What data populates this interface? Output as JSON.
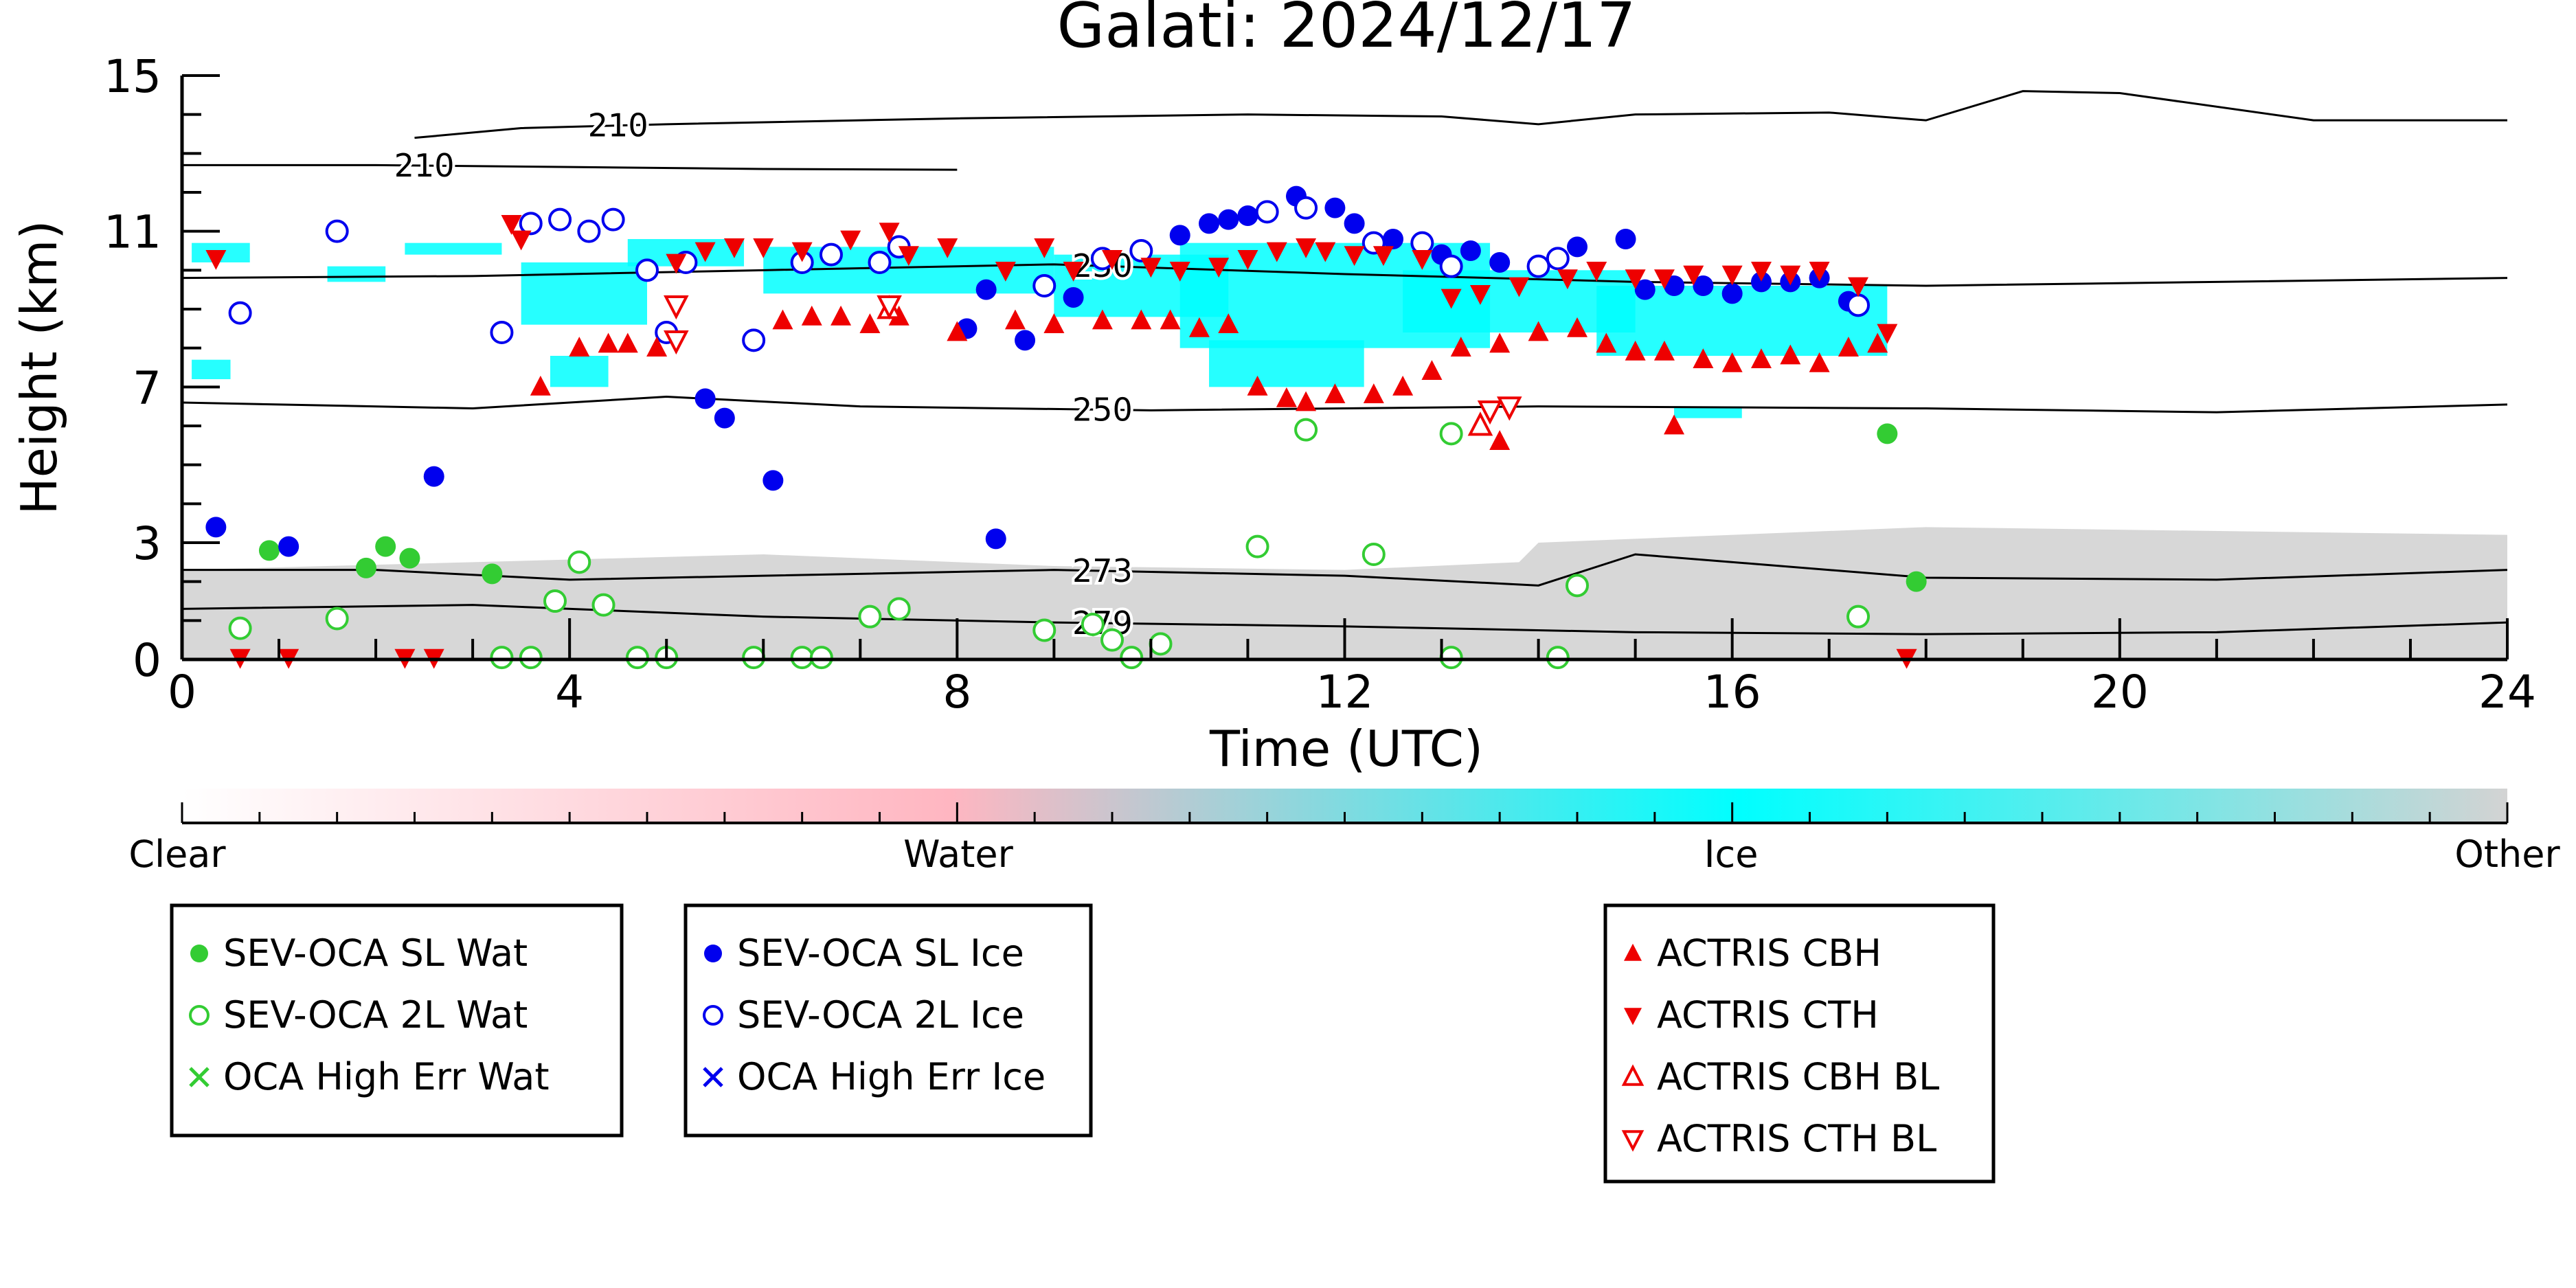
{
  "chart_data": {
    "type": "scatter",
    "title": "Galati: 2024/12/17",
    "xlabel": "Time (UTC)",
    "ylabel": "Height (km)",
    "xlim": [
      0,
      24
    ],
    "ylim": [
      0,
      15
    ],
    "x_ticks": [
      0,
      4,
      8,
      12,
      16,
      20,
      24
    ],
    "y_ticks": [
      0,
      3,
      7,
      11,
      15
    ],
    "colorbar": {
      "labels": [
        "Clear",
        "Water",
        "Ice",
        "Other"
      ],
      "colors": [
        "#ffffff",
        "#ffb6c1",
        "#00ffff",
        "#d3d3d3"
      ]
    },
    "contours": [
      {
        "label": "210",
        "points": [
          [
            0,
            12.7
          ],
          [
            2,
            12.7
          ],
          [
            4,
            12.65
          ],
          [
            6,
            12.6
          ],
          [
            8,
            12.58
          ]
        ]
      },
      {
        "label": "210",
        "points": [
          [
            2.4,
            13.4
          ],
          [
            3.5,
            13.65
          ],
          [
            5,
            13.75
          ],
          [
            8,
            13.9
          ],
          [
            11,
            14
          ],
          [
            13,
            13.95
          ],
          [
            14,
            13.75
          ],
          [
            15,
            14.0
          ],
          [
            17,
            14.05
          ],
          [
            18,
            13.85
          ],
          [
            19,
            14.6
          ],
          [
            20,
            14.55
          ],
          [
            22,
            13.85
          ],
          [
            24,
            13.85
          ]
        ]
      },
      {
        "label": "230",
        "points": [
          [
            0,
            9.8
          ],
          [
            3,
            9.85
          ],
          [
            6,
            10.0
          ],
          [
            9,
            10.15
          ],
          [
            12,
            9.9
          ],
          [
            15,
            9.7
          ],
          [
            18,
            9.6
          ],
          [
            21,
            9.7
          ],
          [
            24,
            9.8
          ]
        ]
      },
      {
        "label": "250",
        "points": [
          [
            0,
            6.6
          ],
          [
            3,
            6.45
          ],
          [
            5,
            6.75
          ],
          [
            7,
            6.5
          ],
          [
            10,
            6.4
          ],
          [
            14,
            6.5
          ],
          [
            18,
            6.45
          ],
          [
            21,
            6.35
          ],
          [
            24,
            6.55
          ]
        ]
      },
      {
        "label": "273",
        "points": [
          [
            0,
            2.3
          ],
          [
            2,
            2.3
          ],
          [
            4,
            2.05
          ],
          [
            6,
            2.15
          ],
          [
            9,
            2.3
          ],
          [
            12,
            2.15
          ],
          [
            14,
            1.9
          ],
          [
            15,
            2.7
          ],
          [
            18,
            2.1
          ],
          [
            21,
            2.05
          ],
          [
            24,
            2.3
          ]
        ]
      },
      {
        "label": "279",
        "points": [
          [
            0,
            1.3
          ],
          [
            3,
            1.4
          ],
          [
            6,
            1.1
          ],
          [
            9,
            0.95
          ],
          [
            12,
            0.85
          ],
          [
            15,
            0.7
          ],
          [
            18,
            0.65
          ],
          [
            21,
            0.7
          ],
          [
            24,
            0.95
          ]
        ]
      }
    ],
    "series": [
      {
        "name": "SEV-OCA SL Wat",
        "marker": "filled-circle",
        "color": "#33cc33",
        "points": [
          [
            0.9,
            2.8
          ],
          [
            1.9,
            2.35
          ],
          [
            2.1,
            2.9
          ],
          [
            2.35,
            2.6
          ],
          [
            3.2,
            2.2
          ],
          [
            17.6,
            5.8
          ],
          [
            17.9,
            2.0
          ]
        ]
      },
      {
        "name": "SEV-OCA 2L Wat",
        "marker": "open-circle",
        "color": "#33cc33",
        "points": [
          [
            0.6,
            0.8
          ],
          [
            1.6,
            1.05
          ],
          [
            3.3,
            0.05
          ],
          [
            3.6,
            0.05
          ],
          [
            3.85,
            1.5
          ],
          [
            4.1,
            2.5
          ],
          [
            4.35,
            1.4
          ],
          [
            4.7,
            0.05
          ],
          [
            5.0,
            0.05
          ],
          [
            5.9,
            0.05
          ],
          [
            6.4,
            0.05
          ],
          [
            6.6,
            0.05
          ],
          [
            7.1,
            1.1
          ],
          [
            7.4,
            1.3
          ],
          [
            8.9,
            0.75
          ],
          [
            9.4,
            0.9
          ],
          [
            9.6,
            0.5
          ],
          [
            9.8,
            0.05
          ],
          [
            10.1,
            0.4
          ],
          [
            11.1,
            2.9
          ],
          [
            11.6,
            5.9
          ],
          [
            12.3,
            2.7
          ],
          [
            13.1,
            0.05
          ],
          [
            13.1,
            5.8
          ],
          [
            14.2,
            0.05
          ],
          [
            14.4,
            1.9
          ],
          [
            17.3,
            1.1
          ]
        ]
      },
      {
        "name": "OCA High Err Wat",
        "marker": "x",
        "color": "#33cc33",
        "points": []
      },
      {
        "name": "SEV-OCA SL Ice",
        "marker": "filled-circle",
        "color": "#0000ee",
        "points": [
          [
            0.35,
            3.4
          ],
          [
            1.1,
            2.9
          ],
          [
            2.6,
            4.7
          ],
          [
            5.4,
            6.7
          ],
          [
            5.6,
            6.2
          ],
          [
            6.1,
            4.6
          ],
          [
            8.4,
            3.1
          ],
          [
            8.1,
            8.5
          ],
          [
            8.3,
            9.5
          ],
          [
            8.7,
            8.2
          ],
          [
            9.2,
            9.3
          ],
          [
            10.3,
            10.9
          ],
          [
            10.6,
            11.2
          ],
          [
            10.8,
            11.3
          ],
          [
            11.0,
            11.4
          ],
          [
            11.5,
            11.9
          ],
          [
            11.9,
            11.6
          ],
          [
            12.1,
            11.2
          ],
          [
            12.5,
            10.8
          ],
          [
            13.0,
            10.4
          ],
          [
            13.3,
            10.5
          ],
          [
            13.6,
            10.2
          ],
          [
            14.4,
            10.6
          ],
          [
            14.9,
            10.8
          ],
          [
            15.1,
            9.5
          ],
          [
            15.4,
            9.6
          ],
          [
            15.7,
            9.6
          ],
          [
            16.0,
            9.4
          ],
          [
            16.3,
            9.7
          ],
          [
            16.6,
            9.7
          ],
          [
            16.9,
            9.8
          ],
          [
            17.2,
            9.2
          ]
        ]
      },
      {
        "name": "SEV-OCA 2L Ice",
        "marker": "open-circle",
        "color": "#0000ee",
        "points": [
          [
            0.6,
            8.9
          ],
          [
            1.6,
            11.0
          ],
          [
            3.3,
            8.4
          ],
          [
            3.6,
            11.2
          ],
          [
            3.9,
            11.3
          ],
          [
            4.2,
            11.0
          ],
          [
            4.45,
            11.3
          ],
          [
            4.8,
            10.0
          ],
          [
            5.0,
            8.4
          ],
          [
            5.2,
            10.2
          ],
          [
            5.9,
            8.2
          ],
          [
            6.4,
            10.2
          ],
          [
            6.7,
            10.4
          ],
          [
            7.2,
            10.2
          ],
          [
            7.4,
            10.6
          ],
          [
            8.9,
            9.6
          ],
          [
            9.5,
            10.3
          ],
          [
            9.9,
            10.5
          ],
          [
            11.2,
            11.5
          ],
          [
            11.6,
            11.6
          ],
          [
            12.3,
            10.7
          ],
          [
            12.8,
            10.7
          ],
          [
            13.1,
            10.1
          ],
          [
            14.0,
            10.1
          ],
          [
            14.2,
            10.3
          ],
          [
            17.3,
            9.1
          ]
        ]
      },
      {
        "name": "OCA High Err Ice",
        "marker": "x",
        "color": "#0000ee",
        "points": []
      },
      {
        "name": "ACTRIS CBH",
        "marker": "filled-triangle-up",
        "color": "#ee0000",
        "points": [
          [
            3.7,
            7.0
          ],
          [
            4.1,
            8.0
          ],
          [
            4.4,
            8.1
          ],
          [
            4.6,
            8.1
          ],
          [
            4.9,
            8.0
          ],
          [
            6.2,
            8.7
          ],
          [
            6.5,
            8.8
          ],
          [
            6.8,
            8.8
          ],
          [
            7.1,
            8.6
          ],
          [
            7.4,
            8.8
          ],
          [
            8.0,
            8.4
          ],
          [
            8.6,
            8.7
          ],
          [
            9.0,
            8.6
          ],
          [
            9.5,
            8.7
          ],
          [
            9.9,
            8.7
          ],
          [
            10.2,
            8.7
          ],
          [
            10.5,
            8.5
          ],
          [
            10.8,
            8.6
          ],
          [
            11.1,
            7.0
          ],
          [
            11.4,
            6.7
          ],
          [
            11.6,
            6.6
          ],
          [
            11.9,
            6.8
          ],
          [
            12.3,
            6.8
          ],
          [
            12.6,
            7.0
          ],
          [
            12.9,
            7.4
          ],
          [
            13.2,
            8.0
          ],
          [
            13.6,
            8.1
          ],
          [
            14.0,
            8.4
          ],
          [
            14.4,
            8.5
          ],
          [
            14.7,
            8.1
          ],
          [
            15.0,
            7.9
          ],
          [
            15.3,
            7.9
          ],
          [
            15.7,
            7.7
          ],
          [
            16.0,
            7.6
          ],
          [
            16.3,
            7.7
          ],
          [
            16.6,
            7.8
          ],
          [
            16.9,
            7.6
          ],
          [
            17.2,
            8.0
          ],
          [
            17.5,
            8.1
          ],
          [
            15.4,
            6.0
          ],
          [
            13.6,
            5.6
          ]
        ]
      },
      {
        "name": "ACTRIS CTH",
        "marker": "filled-triangle-down",
        "color": "#ee0000",
        "points": [
          [
            0.35,
            10.3
          ],
          [
            3.4,
            11.2
          ],
          [
            3.5,
            10.8
          ],
          [
            5.1,
            10.2
          ],
          [
            5.4,
            10.5
          ],
          [
            5.7,
            10.6
          ],
          [
            6.0,
            10.6
          ],
          [
            6.4,
            10.5
          ],
          [
            6.9,
            10.8
          ],
          [
            7.3,
            11.0
          ],
          [
            7.5,
            10.4
          ],
          [
            7.9,
            10.6
          ],
          [
            8.5,
            10.0
          ],
          [
            8.9,
            10.6
          ],
          [
            9.2,
            10.0
          ],
          [
            9.6,
            10.3
          ],
          [
            10.0,
            10.1
          ],
          [
            10.3,
            10.0
          ],
          [
            10.7,
            10.1
          ],
          [
            11.0,
            10.3
          ],
          [
            11.3,
            10.5
          ],
          [
            11.6,
            10.6
          ],
          [
            11.8,
            10.5
          ],
          [
            12.1,
            10.4
          ],
          [
            12.4,
            10.4
          ],
          [
            12.8,
            10.3
          ],
          [
            13.1,
            9.3
          ],
          [
            13.4,
            9.4
          ],
          [
            13.8,
            9.6
          ],
          [
            14.3,
            9.8
          ],
          [
            14.6,
            10.0
          ],
          [
            15.0,
            9.8
          ],
          [
            15.3,
            9.8
          ],
          [
            15.6,
            9.9
          ],
          [
            16.0,
            9.9
          ],
          [
            16.3,
            10.0
          ],
          [
            16.6,
            9.9
          ],
          [
            16.9,
            10.0
          ],
          [
            17.3,
            9.6
          ],
          [
            17.6,
            8.4
          ],
          [
            1.1,
            0.05
          ],
          [
            2.3,
            0.05
          ],
          [
            2.6,
            0.05
          ],
          [
            0.6,
            0.05
          ],
          [
            17.8,
            0.05
          ]
        ]
      },
      {
        "name": "ACTRIS CBH BL",
        "marker": "open-triangle-up",
        "color": "#ee0000",
        "points": [
          [
            7.3,
            9.0
          ],
          [
            13.4,
            6.0
          ]
        ]
      },
      {
        "name": "ACTRIS CTH BL",
        "marker": "open-triangle-down",
        "color": "#ee0000",
        "points": [
          [
            5.1,
            8.2
          ],
          [
            5.1,
            9.1
          ],
          [
            7.3,
            9.1
          ],
          [
            13.5,
            6.4
          ],
          [
            13.7,
            6.5
          ]
        ]
      }
    ],
    "legends": [
      {
        "entries": [
          "SEV-OCA SL Wat",
          "SEV-OCA 2L Wat",
          "OCA High Err Wat"
        ]
      },
      {
        "entries": [
          "SEV-OCA SL Ice",
          "SEV-OCA 2L Ice",
          "OCA High Err Ice"
        ]
      },
      {
        "entries": [
          "ACTRIS CBH",
          "ACTRIS CTH",
          "ACTRIS CBH BL",
          "ACTRIS CTH BL"
        ]
      }
    ]
  }
}
